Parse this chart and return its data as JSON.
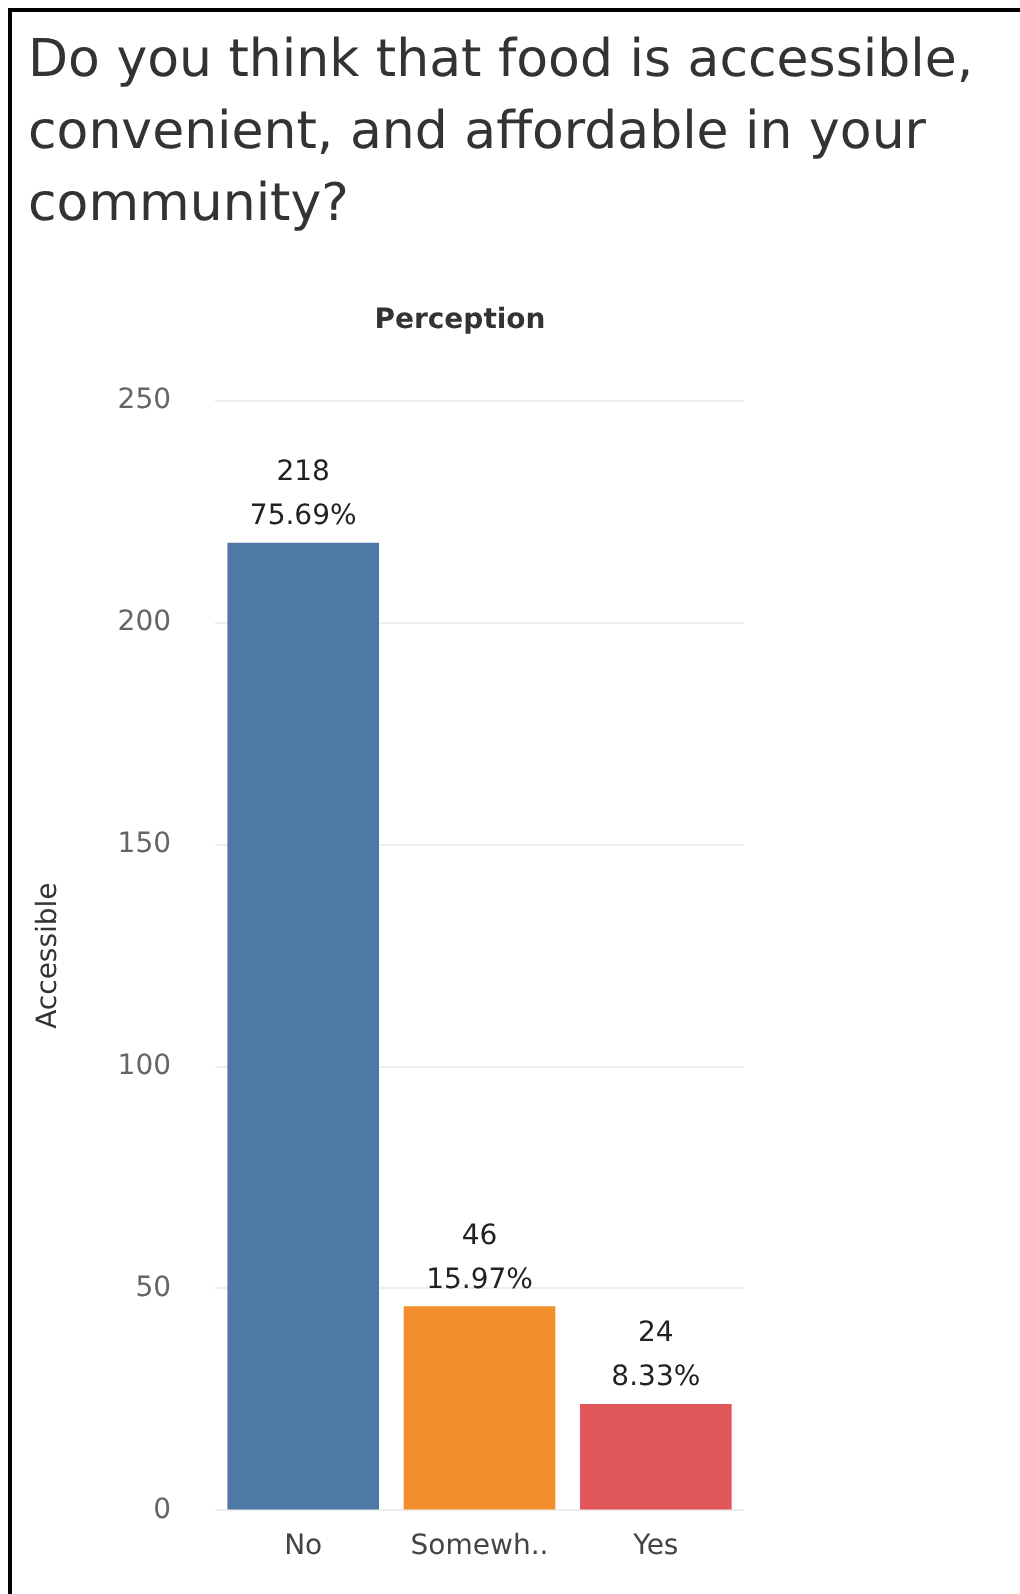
{
  "chart_data": {
    "type": "bar",
    "title": "Do you think that food is accessible, convenient, and affordable in your community?",
    "xlabel": "Perception",
    "ylabel": "Accessible",
    "categories": [
      "No",
      "Somewh..",
      "Yes"
    ],
    "values": [
      218,
      46,
      24
    ],
    "colors": [
      "#4e79a7",
      "#f28e2b",
      "#e15759"
    ],
    "value_labels": [
      "218\n75.69%",
      "46\n15.97%",
      "24\n8.33%"
    ],
    "ylim": [
      0,
      250
    ],
    "yticks": [
      0,
      50,
      100,
      150,
      200,
      250
    ],
    "grid": "y",
    "legend": false
  }
}
